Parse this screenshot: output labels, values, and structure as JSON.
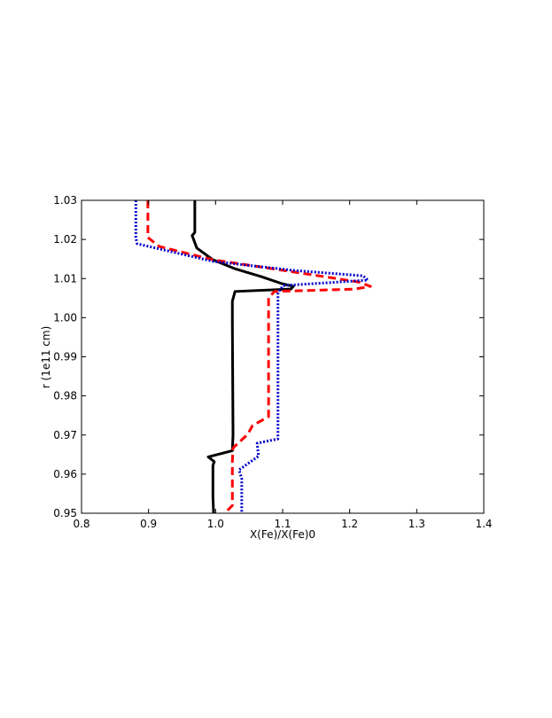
{
  "chart_data": {
    "type": "line",
    "xlabel": "X(Fe)/X(Fe)0",
    "ylabel": "r (1e11 cm)",
    "xlim": [
      0.8,
      1.4
    ],
    "ylim": [
      0.95,
      1.03
    ],
    "xticks": [
      0.8,
      0.9,
      {
        "value": 1,
        "label": "1.0"
      },
      1.1,
      1.2,
      1.3,
      1.4
    ],
    "yticks": [
      0.95,
      0.96,
      0.97,
      0.98,
      0.99,
      {
        "value": 1,
        "label": "1.00"
      },
      1.01,
      1.02,
      1.03
    ],
    "series": [
      {
        "color": "#000000",
        "style": "solid",
        "x": [
          0.969,
          0.969,
          0.965,
          0.972,
          0.996,
          1.029,
          1.068,
          1.099,
          1.116,
          1.112,
          1.029,
          1.025,
          1.025,
          1.026,
          1.025,
          0.989,
          0.998,
          0.996,
          0.996,
          0.997
        ],
        "values": [
          1.03,
          1.0218,
          1.021,
          1.0178,
          1.0148,
          1.0125,
          1.0105,
          1.0087,
          1.008,
          1.0073,
          1.0067,
          1.0042,
          0.999,
          0.97,
          0.966,
          0.9644,
          0.9632,
          0.9622,
          0.9543,
          0.95
        ]
      },
      {
        "color": "#ff0000",
        "style": "dashed",
        "x": [
          0.899,
          0.899,
          0.916,
          0.996,
          1.101,
          1.214,
          1.231,
          1.207,
          1.088,
          1.079,
          1.079,
          1.055,
          1.048,
          1.026,
          1.025,
          1.025,
          1.015
        ],
        "values": [
          1.03,
          1.0205,
          1.0182,
          1.0148,
          1.0121,
          1.0091,
          1.008,
          1.0073,
          1.0067,
          1.0051,
          0.9747,
          0.9724,
          0.9702,
          0.9667,
          0.9633,
          0.952,
          0.9502
        ]
      },
      {
        "color": "#0000cc",
        "style": "dotted",
        "x": [
          0.881,
          0.881,
          0.883,
          0.996,
          1.115,
          1.22,
          1.227,
          1.101,
          1.093,
          1.093,
          1.062,
          1.064,
          1.035,
          1.039,
          1.039
        ],
        "values": [
          1.03,
          1.0205,
          1.0189,
          1.0144,
          1.0121,
          1.0107,
          1.0096,
          1.0082,
          1.0064,
          0.969,
          0.9679,
          0.9646,
          0.9611,
          0.9588,
          0.95
        ]
      }
    ]
  }
}
